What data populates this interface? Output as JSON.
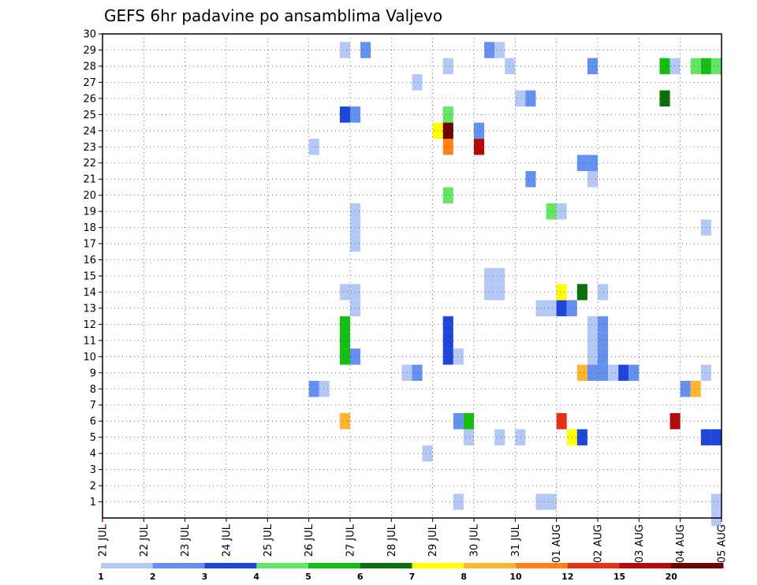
{
  "chart_data": {
    "type": "heatmap",
    "title": "GEFS 6hr padavine po ansamblima Valjevo",
    "xlabel": "",
    "ylabel": "",
    "y_ticks": [
      1,
      2,
      3,
      4,
      5,
      6,
      7,
      8,
      9,
      10,
      11,
      12,
      13,
      14,
      15,
      16,
      17,
      18,
      19,
      20,
      21,
      22,
      23,
      24,
      25,
      26,
      27,
      28,
      29,
      30
    ],
    "ylim": [
      0,
      30
    ],
    "x_ticks": [
      "21 JUL",
      "22 JUL",
      "23 JUL",
      "24 JUL",
      "25 JUL",
      "26 JUL",
      "27 JUL",
      "28 JUL",
      "29 JUL",
      "30 JUL",
      "31 JUL",
      "01 AUG",
      "02 AUG",
      "03 AUG",
      "04 AUG",
      "05 AUG"
    ],
    "xlim_days": [
      0,
      15
    ],
    "grid": true,
    "legend": {
      "position": "bottom",
      "levels": [
        1,
        2,
        3,
        4,
        5,
        6,
        7,
        8,
        10,
        12,
        15,
        20
      ],
      "colors": [
        "#b4c8f5",
        "#6490f0",
        "#1e46dc",
        "#64e664",
        "#14be14",
        "#0a700a",
        "#ffff00",
        "#ffb432",
        "#ff8214",
        "#e63214",
        "#b40a0a",
        "#6e0000"
      ]
    },
    "steps_per_day": 4,
    "cells": [
      [
        1,
        34,
        0
      ],
      [
        1,
        42,
        0
      ],
      [
        1,
        43,
        0
      ],
      [
        1,
        59,
        0
      ],
      [
        0,
        59,
        0
      ],
      [
        4,
        31,
        0
      ],
      [
        5,
        35,
        0
      ],
      [
        5,
        38,
        0
      ],
      [
        5,
        40,
        0
      ],
      [
        5,
        45,
        6
      ],
      [
        5,
        46,
        2
      ],
      [
        5,
        58,
        2
      ],
      [
        5,
        59,
        2
      ],
      [
        5,
        60,
        0
      ],
      [
        5,
        61,
        0
      ],
      [
        5,
        63,
        0
      ],
      [
        6,
        23,
        7
      ],
      [
        6,
        34,
        1
      ],
      [
        6,
        35,
        4
      ],
      [
        6,
        44,
        9
      ],
      [
        6,
        55,
        10
      ],
      [
        6,
        62,
        0
      ],
      [
        6,
        63,
        1
      ],
      [
        6,
        64,
        0
      ],
      [
        7,
        61,
        0
      ],
      [
        7,
        64,
        0
      ],
      [
        8,
        20,
        1
      ],
      [
        8,
        21,
        0
      ],
      [
        8,
        56,
        1
      ],
      [
        8,
        57,
        7
      ],
      [
        9,
        29,
        0
      ],
      [
        9,
        30,
        1
      ],
      [
        9,
        46,
        7
      ],
      [
        9,
        47,
        1
      ],
      [
        9,
        48,
        1
      ],
      [
        9,
        49,
        0
      ],
      [
        9,
        50,
        2
      ],
      [
        9,
        51,
        1
      ],
      [
        9,
        58,
        0
      ],
      [
        9,
        60,
        0
      ],
      [
        10,
        23,
        4
      ],
      [
        10,
        24,
        1
      ],
      [
        10,
        33,
        2
      ],
      [
        10,
        34,
        0
      ],
      [
        10,
        47,
        0
      ],
      [
        10,
        48,
        1
      ],
      [
        11,
        23,
        4
      ],
      [
        11,
        33,
        2
      ],
      [
        11,
        47,
        0
      ],
      [
        11,
        48,
        1
      ],
      [
        12,
        23,
        4
      ],
      [
        12,
        33,
        2
      ],
      [
        12,
        47,
        0
      ],
      [
        12,
        48,
        1
      ],
      [
        13,
        24,
        0
      ],
      [
        13,
        42,
        0
      ],
      [
        13,
        43,
        0
      ],
      [
        13,
        44,
        2
      ],
      [
        13,
        45,
        1
      ],
      [
        14,
        23,
        0
      ],
      [
        14,
        24,
        0
      ],
      [
        14,
        37,
        0
      ],
      [
        14,
        38,
        0
      ],
      [
        14,
        44,
        6
      ],
      [
        14,
        46,
        5
      ],
      [
        14,
        48,
        0
      ],
      [
        14,
        63,
        0
      ],
      [
        14,
        64,
        6
      ],
      [
        15,
        37,
        0
      ],
      [
        15,
        38,
        0
      ],
      [
        17,
        24,
        0
      ],
      [
        18,
        24,
        0
      ],
      [
        18,
        58,
        0
      ],
      [
        19,
        24,
        0
      ],
      [
        19,
        43,
        3
      ],
      [
        19,
        44,
        0
      ],
      [
        20,
        33,
        3
      ],
      [
        20,
        62,
        1
      ],
      [
        20,
        63,
        2
      ],
      [
        21,
        41,
        1
      ],
      [
        21,
        47,
        0
      ],
      [
        22,
        46,
        1
      ],
      [
        22,
        47,
        1
      ],
      [
        23,
        20,
        0
      ],
      [
        23,
        33,
        8
      ],
      [
        23,
        36,
        10
      ],
      [
        24,
        32,
        6
      ],
      [
        24,
        33,
        11
      ],
      [
        24,
        36,
        1
      ],
      [
        25,
        23,
        2
      ],
      [
        25,
        24,
        1
      ],
      [
        25,
        33,
        3
      ],
      [
        26,
        40,
        0
      ],
      [
        26,
        41,
        1
      ],
      [
        26,
        54,
        5
      ],
      [
        27,
        30,
        0
      ],
      [
        27,
        64,
        0
      ],
      [
        28,
        33,
        0
      ],
      [
        28,
        39,
        0
      ],
      [
        28,
        47,
        1
      ],
      [
        28,
        54,
        4
      ],
      [
        28,
        55,
        0
      ],
      [
        28,
        57,
        3
      ],
      [
        28,
        58,
        4
      ],
      [
        28,
        59,
        3
      ],
      [
        28,
        60,
        2
      ],
      [
        28,
        61,
        1
      ],
      [
        29,
        23,
        0
      ],
      [
        29,
        25,
        1
      ],
      [
        29,
        37,
        1
      ],
      [
        29,
        38,
        0
      ]
    ]
  }
}
